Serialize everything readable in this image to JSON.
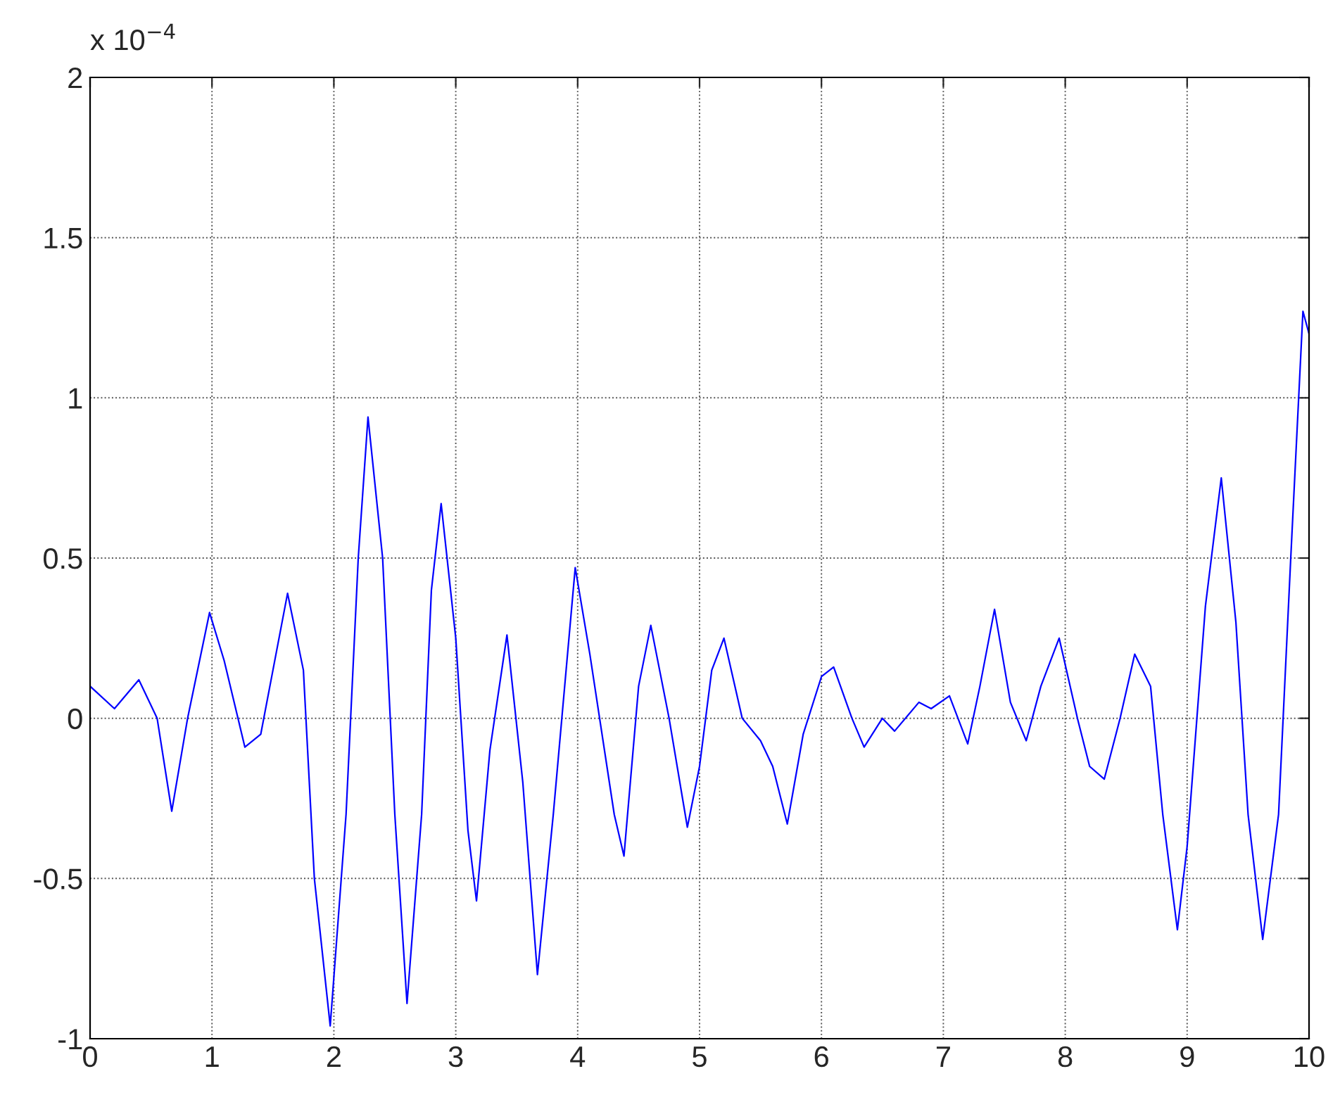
{
  "chart_data": {
    "type": "line",
    "x": [
      0,
      0.2,
      0.4,
      0.55,
      0.67,
      0.8,
      0.98,
      1.1,
      1.27,
      1.4,
      1.5,
      1.62,
      1.75,
      1.84,
      1.97,
      2.1,
      2.2,
      2.28,
      2.4,
      2.5,
      2.6,
      2.72,
      2.8,
      2.88,
      3.0,
      3.1,
      3.17,
      3.28,
      3.42,
      3.55,
      3.67,
      3.8,
      3.98,
      4.1,
      4.3,
      4.38,
      4.5,
      4.6,
      4.75,
      4.9,
      5.0,
      5.1,
      5.2,
      5.35,
      5.5,
      5.6,
      5.72,
      5.85,
      6.0,
      6.1,
      6.25,
      6.35,
      6.5,
      6.6,
      6.8,
      6.9,
      7.05,
      7.2,
      7.3,
      7.42,
      7.55,
      7.68,
      7.8,
      7.95,
      8.1,
      8.2,
      8.32,
      8.45,
      8.57,
      8.7,
      8.8,
      8.92,
      9.0,
      9.15,
      9.28,
      9.4,
      9.5,
      9.62,
      9.75,
      9.85,
      9.95,
      10.0
    ],
    "series": [
      {
        "color": "#0000ff",
        "values": [
          0.1,
          0.03,
          0.12,
          0.0,
          -0.29,
          0.0,
          0.33,
          0.18,
          -0.09,
          -0.05,
          0.15,
          0.39,
          0.15,
          -0.5,
          -0.96,
          -0.3,
          0.5,
          0.94,
          0.5,
          -0.3,
          -0.89,
          -0.3,
          0.4,
          0.67,
          0.25,
          -0.35,
          -0.57,
          -0.1,
          0.26,
          -0.2,
          -0.8,
          -0.3,
          0.47,
          0.2,
          -0.3,
          -0.43,
          0.1,
          0.29,
          0.0,
          -0.34,
          -0.15,
          0.15,
          0.25,
          0.0,
          -0.07,
          -0.15,
          -0.33,
          -0.05,
          0.13,
          0.16,
          0.0,
          -0.09,
          0.0,
          -0.04,
          0.05,
          0.03,
          0.07,
          -0.08,
          0.1,
          0.34,
          0.05,
          -0.07,
          0.1,
          0.25,
          0.0,
          -0.15,
          -0.19,
          0.0,
          0.2,
          0.1,
          -0.3,
          -0.66,
          -0.4,
          0.35,
          0.75,
          0.3,
          -0.3,
          -0.69,
          -0.3,
          0.5,
          1.27,
          1.2
        ]
      }
    ],
    "xlim": [
      0,
      10
    ],
    "xticks": [
      0,
      1,
      2,
      3,
      4,
      5,
      6,
      7,
      8,
      9,
      10
    ],
    "ylim": [
      -1,
      2
    ],
    "yticks": [
      -1,
      -0.5,
      0,
      0.5,
      1,
      1.5,
      2
    ],
    "annotations": [
      "x 10$^{−4}$"
    ],
    "grid": true,
    "marker": "none",
    "line_style": "solid",
    "legend": false
  }
}
